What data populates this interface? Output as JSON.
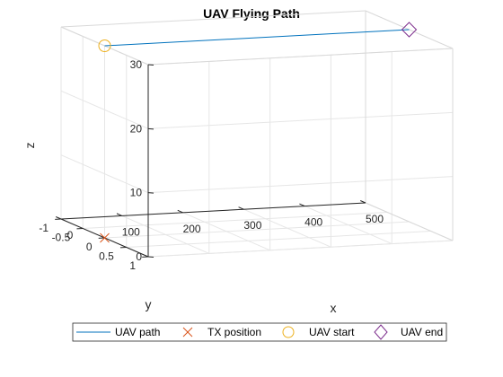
{
  "chart_data": {
    "type": "line3d",
    "title": "UAV Flying Path",
    "xlabel": "x",
    "ylabel": "y",
    "zlabel": "z",
    "xlim": [
      0,
      500
    ],
    "ylim": [
      -1,
      1
    ],
    "zlim": [
      0,
      30
    ],
    "xticks": [
      0,
      100,
      200,
      300,
      400,
      500
    ],
    "yticks": [
      -1,
      -0.5,
      0,
      0.5,
      1
    ],
    "yticklabels": [
      "-1",
      "-0.5",
      "0",
      "0.5",
      "1"
    ],
    "zticks": [
      0,
      10,
      20,
      30
    ],
    "grid": true,
    "box": true,
    "legend_placement": "bottom-outside",
    "series": [
      {
        "name": "UAV path",
        "kind": "line",
        "color": "#0072bd",
        "x": [
          0,
          500
        ],
        "y": [
          0,
          0
        ],
        "z": [
          30,
          30
        ]
      },
      {
        "name": "TX position",
        "kind": "marker",
        "marker": "x",
        "color": "#d95319",
        "x": [
          0
        ],
        "y": [
          0
        ],
        "z": [
          0
        ]
      },
      {
        "name": "UAV start",
        "kind": "marker",
        "marker": "o",
        "color": "#edb120",
        "x": [
          0
        ],
        "y": [
          0
        ],
        "z": [
          30
        ]
      },
      {
        "name": "UAV end",
        "kind": "marker",
        "marker": "diamond",
        "color": "#7e2f8e",
        "x": [
          500
        ],
        "y": [
          0
        ],
        "z": [
          30
        ]
      }
    ]
  }
}
